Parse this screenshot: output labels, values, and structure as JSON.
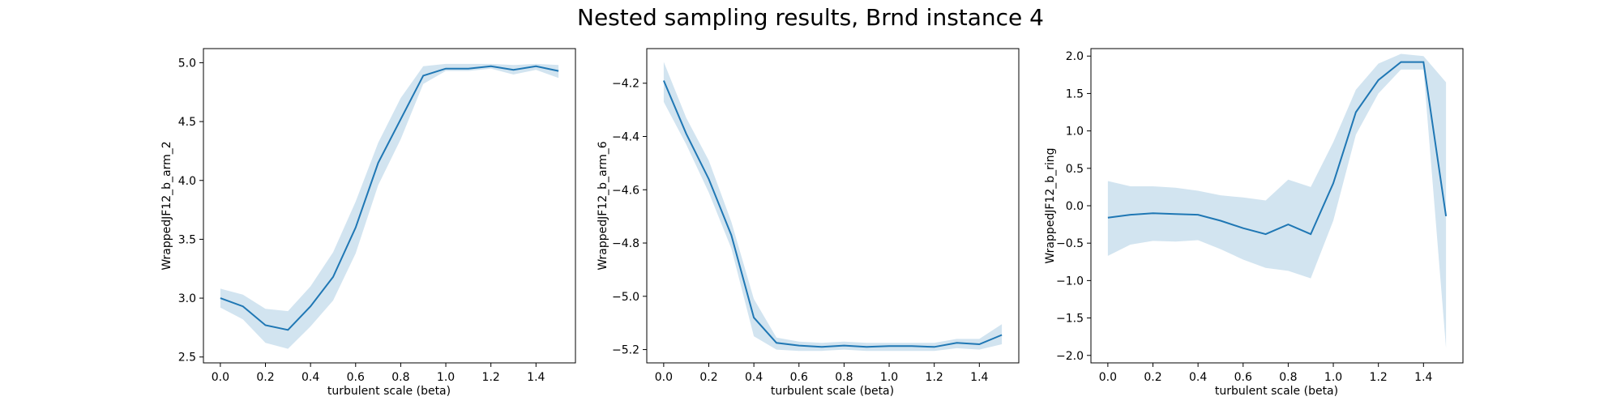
{
  "figure": {
    "title": "Nested sampling results, Brnd instance 4"
  },
  "chart_data": [
    {
      "type": "line",
      "title": "",
      "xlabel": "turbulent scale (beta)",
      "ylabel": "WrappedJF12_b_arm_2",
      "xlim": [
        -0.075,
        1.575
      ],
      "ylim": [
        2.45,
        5.12
      ],
      "xticks": [
        0.0,
        0.2,
        0.4,
        0.6,
        0.8,
        1.0,
        1.2,
        1.4
      ],
      "xtick_labels": [
        "0.0",
        "0.2",
        "0.4",
        "0.6",
        "0.8",
        "1.0",
        "1.2",
        "1.4"
      ],
      "yticks": [
        2.5,
        3.0,
        3.5,
        4.0,
        4.5,
        5.0
      ],
      "ytick_labels": [
        "2.5",
        "3.0",
        "3.5",
        "4.0",
        "4.5",
        "5.0"
      ],
      "grid": false,
      "x": [
        0.0,
        0.1,
        0.2,
        0.3,
        0.4,
        0.5,
        0.6,
        0.7,
        0.8,
        0.9,
        1.0,
        1.1,
        1.2,
        1.3,
        1.4,
        1.5
      ],
      "series": [
        {
          "name": "",
          "color": "#1f77b4",
          "values": [
            3.0,
            2.93,
            2.77,
            2.73,
            2.93,
            3.18,
            3.6,
            4.15,
            4.52,
            4.89,
            4.95,
            4.95,
            4.97,
            4.94,
            4.97,
            4.93
          ],
          "lower": [
            2.92,
            2.82,
            2.62,
            2.57,
            2.76,
            2.98,
            3.38,
            3.96,
            4.35,
            4.82,
            4.93,
            4.93,
            4.95,
            4.9,
            4.94,
            4.87
          ],
          "upper": [
            3.08,
            3.03,
            2.91,
            2.89,
            3.1,
            3.39,
            3.82,
            4.32,
            4.7,
            4.97,
            4.99,
            4.99,
            4.99,
            4.98,
            4.99,
            4.98
          ]
        }
      ]
    },
    {
      "type": "line",
      "title": "",
      "xlabel": "turbulent scale (beta)",
      "ylabel": "WrappedJF12_b_arm_6",
      "xlim": [
        -0.075,
        1.575
      ],
      "ylim": [
        -5.25,
        -4.07
      ],
      "xticks": [
        0.0,
        0.2,
        0.4,
        0.6,
        0.8,
        1.0,
        1.2,
        1.4
      ],
      "xtick_labels": [
        "0.0",
        "0.2",
        "0.4",
        "0.6",
        "0.8",
        "1.0",
        "1.2",
        "1.4"
      ],
      "yticks": [
        -5.2,
        -5.0,
        -4.8,
        -4.6,
        -4.4,
        -4.2
      ],
      "ytick_labels": [
        "−5.2",
        "−5.0",
        "−4.8",
        "−4.6",
        "−4.4",
        "−4.2"
      ],
      "grid": false,
      "x": [
        0.0,
        0.1,
        0.2,
        0.3,
        0.4,
        0.5,
        0.6,
        0.7,
        0.8,
        0.9,
        1.0,
        1.1,
        1.2,
        1.3,
        1.4,
        1.5
      ],
      "series": [
        {
          "name": "",
          "color": "#1f77b4",
          "values": [
            -4.19,
            -4.39,
            -4.56,
            -4.77,
            -5.08,
            -5.175,
            -5.185,
            -5.19,
            -5.185,
            -5.19,
            -5.187,
            -5.187,
            -5.19,
            -5.175,
            -5.18,
            -5.145
          ],
          "lower": [
            -4.27,
            -4.43,
            -4.61,
            -4.82,
            -5.15,
            -5.2,
            -5.205,
            -5.205,
            -5.2,
            -5.205,
            -5.205,
            -5.205,
            -5.205,
            -5.195,
            -5.2,
            -5.18
          ],
          "upper": [
            -4.12,
            -4.33,
            -4.49,
            -4.72,
            -5.01,
            -5.155,
            -5.17,
            -5.175,
            -5.17,
            -5.175,
            -5.175,
            -5.175,
            -5.175,
            -5.16,
            -5.16,
            -5.105
          ]
        }
      ]
    },
    {
      "type": "line",
      "title": "",
      "xlabel": "turbulent scale (beta)",
      "ylabel": "WrappedJF12_b_ring",
      "xlim": [
        -0.075,
        1.575
      ],
      "ylim": [
        -2.1,
        2.1
      ],
      "xticks": [
        0.0,
        0.2,
        0.4,
        0.6,
        0.8,
        1.0,
        1.2,
        1.4
      ],
      "xtick_labels": [
        "0.0",
        "0.2",
        "0.4",
        "0.6",
        "0.8",
        "1.0",
        "1.2",
        "1.4"
      ],
      "yticks": [
        -2.0,
        -1.5,
        -1.0,
        -0.5,
        0.0,
        0.5,
        1.0,
        1.5,
        2.0
      ],
      "ytick_labels": [
        "−2.0",
        "−1.5",
        "−1.0",
        "−0.5",
        "0.0",
        "0.5",
        "1.0",
        "1.5",
        "2.0"
      ],
      "grid": false,
      "x": [
        0.0,
        0.1,
        0.2,
        0.3,
        0.4,
        0.5,
        0.6,
        0.7,
        0.8,
        0.9,
        1.0,
        1.1,
        1.2,
        1.3,
        1.4,
        1.5
      ],
      "series": [
        {
          "name": "",
          "color": "#1f77b4",
          "values": [
            -0.16,
            -0.12,
            -0.1,
            -0.11,
            -0.12,
            -0.2,
            -0.3,
            -0.38,
            -0.25,
            -0.38,
            0.3,
            1.25,
            1.68,
            1.92,
            1.92,
            -0.14
          ],
          "lower": [
            -0.67,
            -0.52,
            -0.47,
            -0.48,
            -0.46,
            -0.58,
            -0.72,
            -0.83,
            -0.87,
            -0.97,
            -0.2,
            0.95,
            1.5,
            1.82,
            1.82,
            -1.9
          ],
          "upper": [
            0.33,
            0.26,
            0.26,
            0.24,
            0.2,
            0.14,
            0.11,
            0.07,
            0.35,
            0.25,
            0.85,
            1.55,
            1.9,
            2.03,
            2.0,
            1.65
          ]
        }
      ]
    }
  ]
}
